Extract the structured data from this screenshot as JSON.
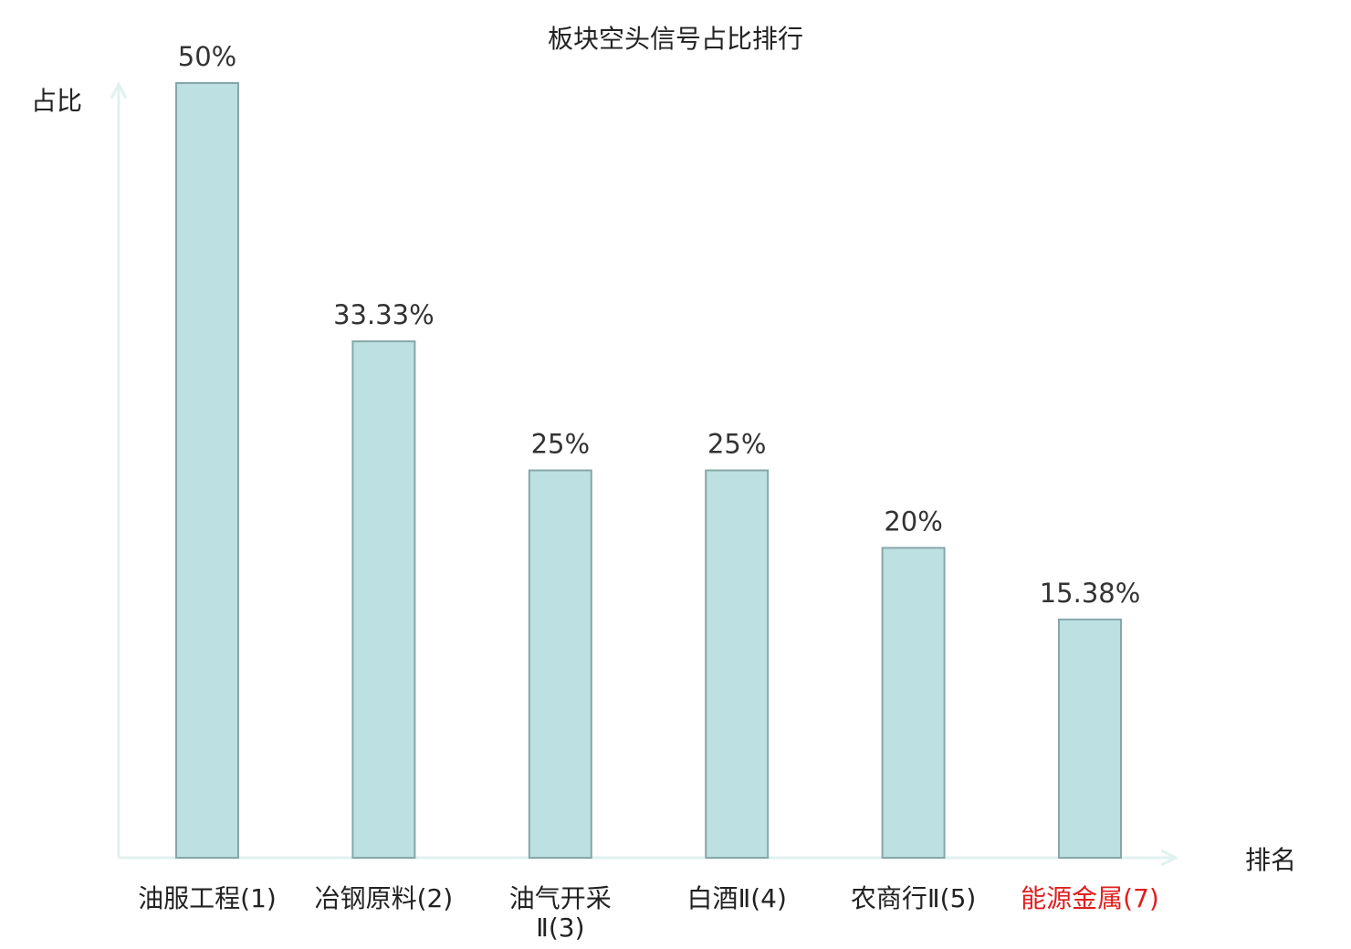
{
  "chart_data": {
    "type": "bar",
    "title": "板块空头信号占比排行",
    "xlabel": "排名",
    "ylabel": "占比",
    "categories": [
      [
        "油服工程(1)"
      ],
      [
        "冶钢原料(2)"
      ],
      [
        "油气开采",
        "Ⅱ(3)"
      ],
      [
        "白酒Ⅱ(4)"
      ],
      [
        "农商行Ⅱ(5)"
      ],
      [
        "能源金属(7)"
      ]
    ],
    "values": [
      50,
      33.33,
      25,
      25,
      20,
      15.38
    ],
    "value_labels": [
      "50%",
      "33.33%",
      "25%",
      "25%",
      "20%",
      "15.38%"
    ],
    "ylim": [
      0,
      50
    ],
    "highlight_index": 5,
    "grid": false,
    "legend": "none"
  },
  "colors": {
    "bar_fill": "#bde0e2",
    "bar_stroke": "#86a7aa",
    "axis": "#dff2ef",
    "text": "#333333",
    "label": "#222222",
    "highlight": "#e01e1e"
  }
}
